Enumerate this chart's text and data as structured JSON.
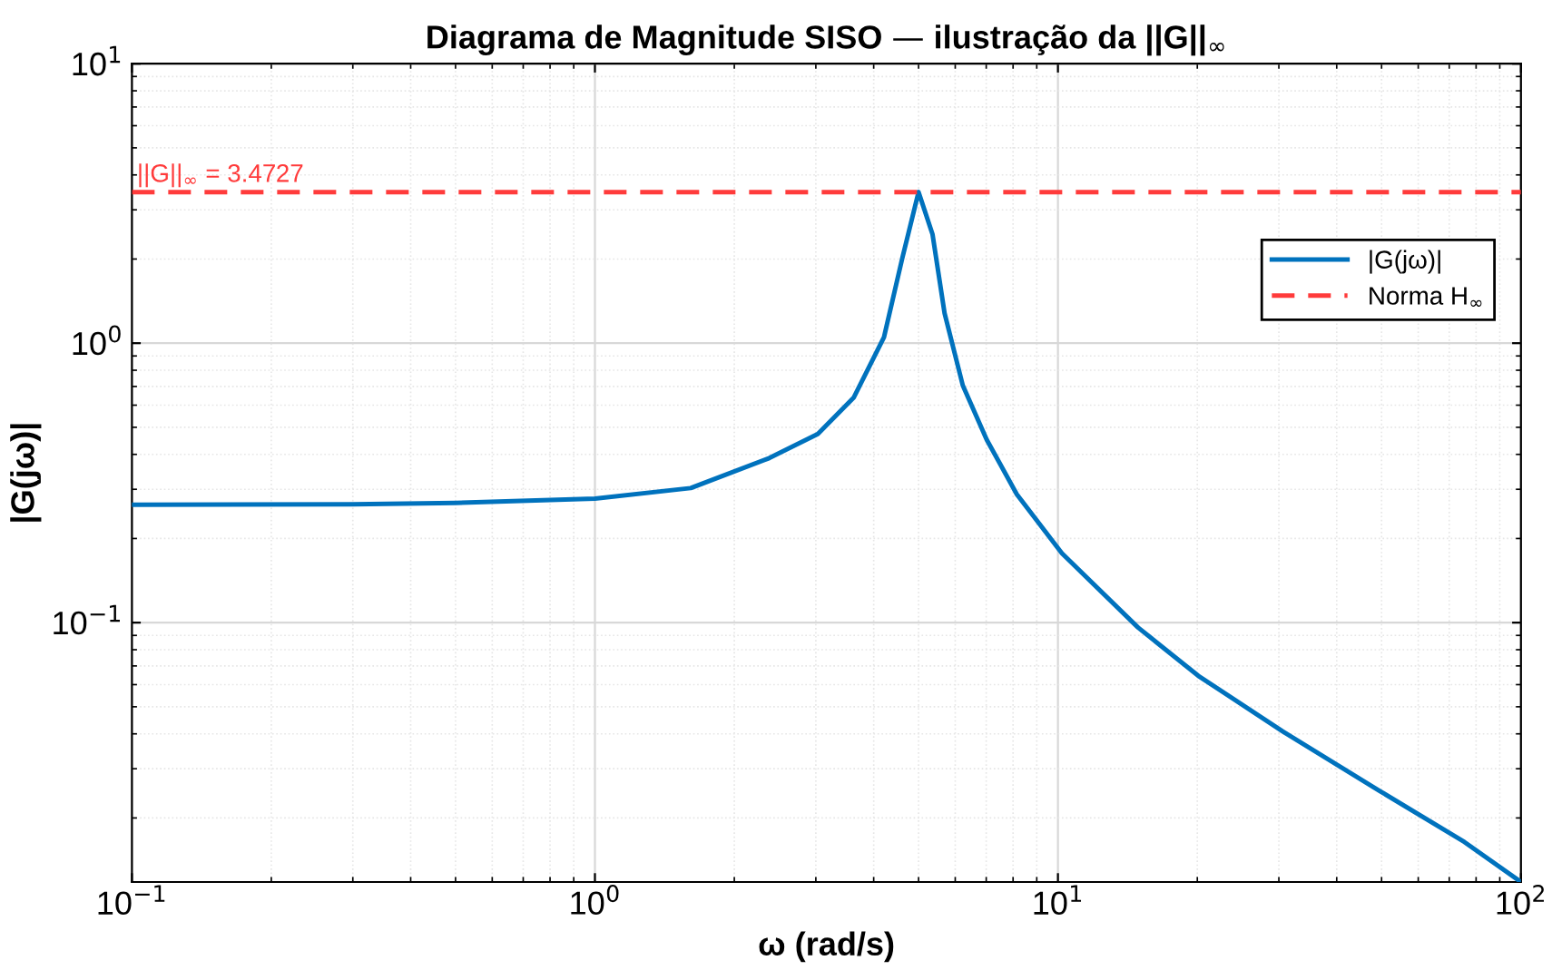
{
  "chart_data": {
    "type": "line",
    "title": "Diagrama de Magnitude SISO — ilustração da ||G||$_{∞}$",
    "xlabel": "ω (rad/s)",
    "ylabel": "|G(jω)|",
    "log": "xy",
    "xlim": [
      0.1,
      100
    ],
    "ylim": [
      0.0118,
      10
    ],
    "xticks": [
      {
        "value": 0.1,
        "label": "10$^{−1}$"
      },
      {
        "value": 1,
        "label": "10$^{0}$"
      },
      {
        "value": 10,
        "label": "10$^{1}$"
      },
      {
        "value": 100,
        "label": "10$^{2}$"
      }
    ],
    "yticks": [
      {
        "value": 0.1,
        "label": "10$^{−1}$"
      },
      {
        "value": 1,
        "label": "10$^{0}$"
      },
      {
        "value": 10,
        "label": "10$^{1}$"
      }
    ],
    "grid": true,
    "legend": "top right",
    "marker": "none",
    "line_style": "solid",
    "series": [
      {
        "name": "|G(jω)|",
        "color": "#0072bd",
        "x": [
          0.1,
          0.3,
          0.5,
          1,
          1.61,
          2.38,
          3.03,
          3.62,
          4.21,
          4.61,
          5.0,
          5.36,
          5.69,
          6.23,
          7.02,
          8.15,
          10.2,
          14.9,
          20.1,
          30.6,
          49.5,
          75.5,
          100
        ],
        "values": [
          0.264,
          0.265,
          0.268,
          0.278,
          0.303,
          0.388,
          0.473,
          0.638,
          1.05,
          2.01,
          3.4727,
          2.45,
          1.28,
          0.706,
          0.451,
          0.288,
          0.177,
          0.096,
          0.0645,
          0.0408,
          0.025,
          0.0164,
          0.0118
        ]
      }
    ],
    "ref_lines": [
      {
        "axis": "y",
        "value": 3.4727,
        "label": "Norma H$_{∞}$",
        "color": "#ff3b3b",
        "line_style": "dashed"
      }
    ],
    "annotations": [
      {
        "text": "||G||$_{∞}$ = 3.4727",
        "x": 0.1,
        "y": 3.4727
      }
    ]
  }
}
